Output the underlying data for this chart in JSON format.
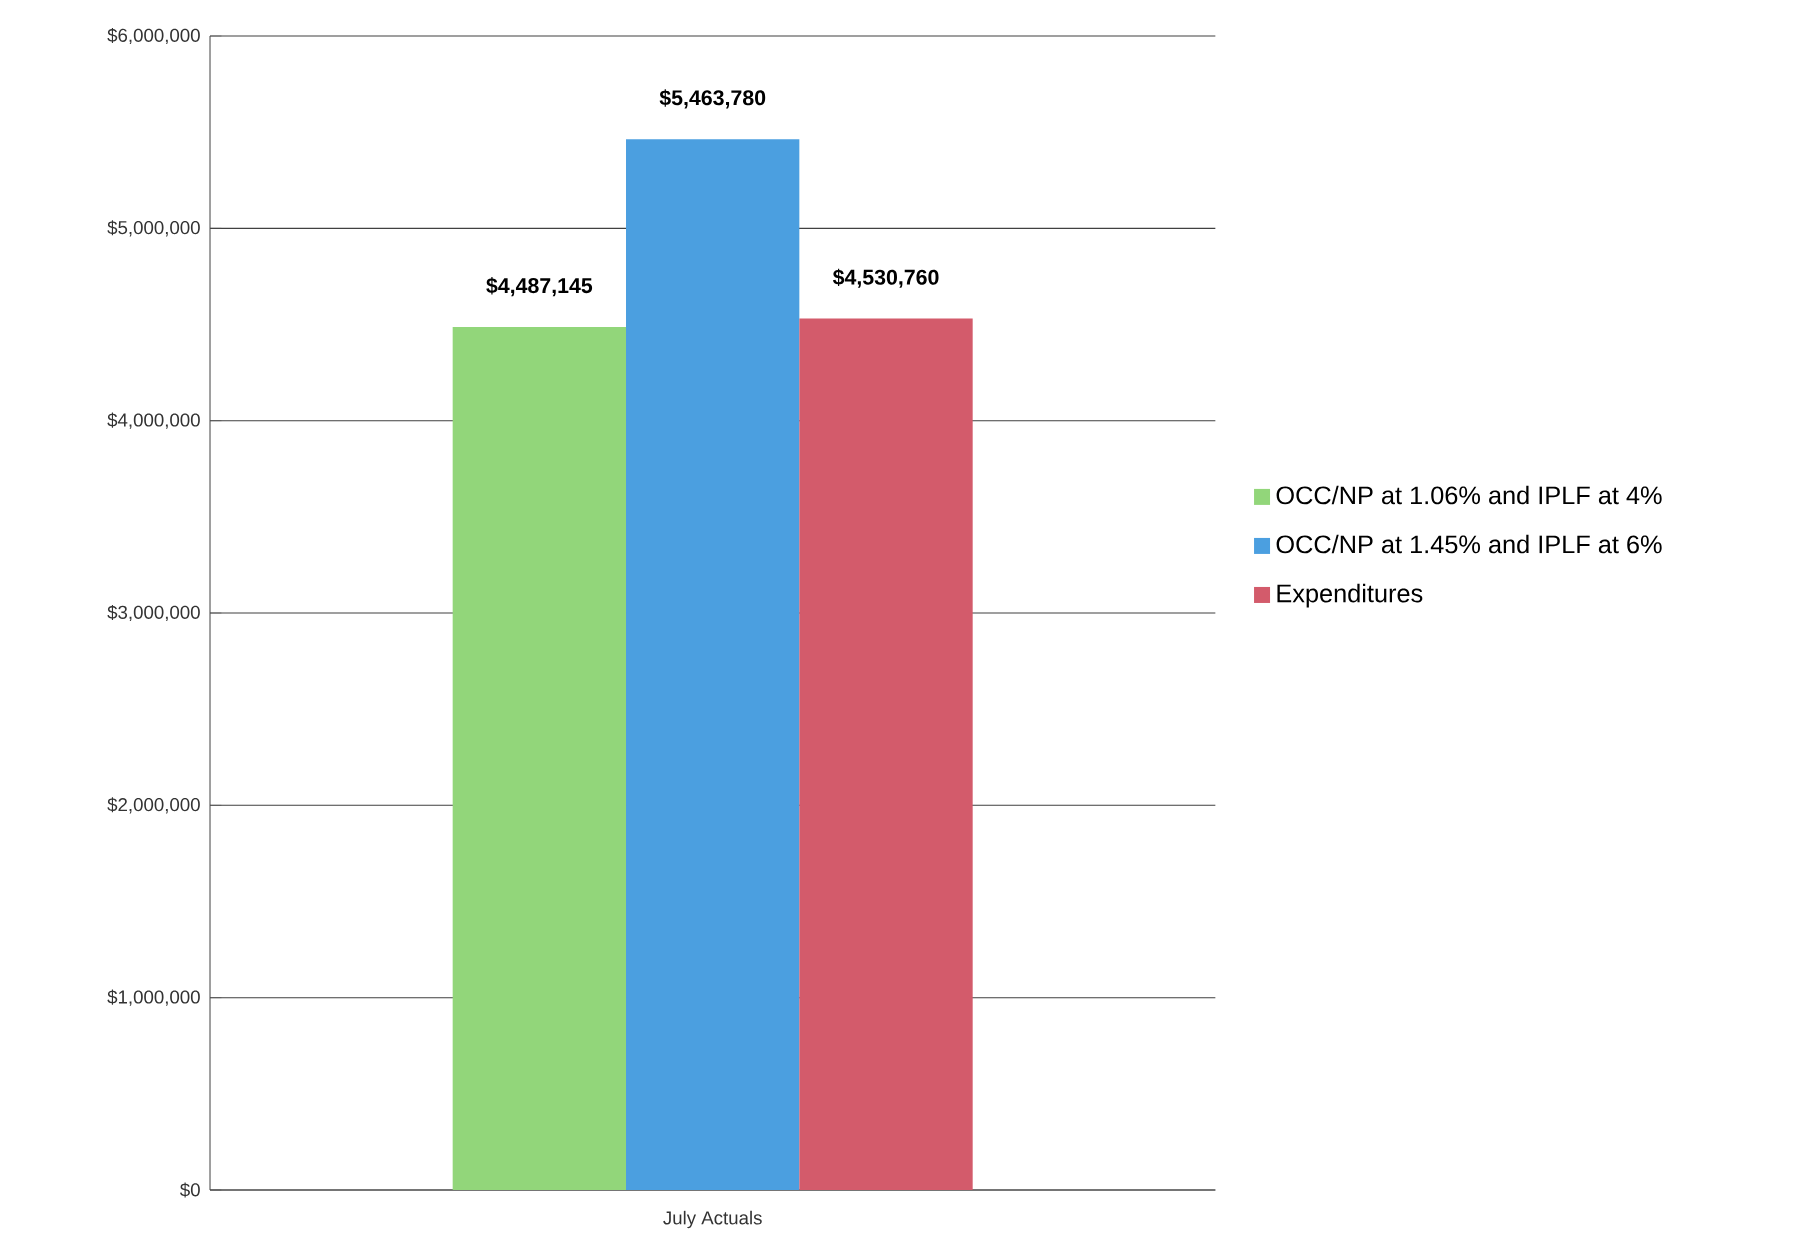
{
  "chart_data": {
    "type": "bar",
    "categories": [
      "July Actuals"
    ],
    "series": [
      {
        "name": "OCC/NP at 1.06% and IPLF at 4%",
        "color": "#92d67a",
        "values": [
          4487145
        ],
        "value_labels": [
          "$4,487,145"
        ]
      },
      {
        "name": "OCC/NP at 1.45% and IPLF at 6%",
        "color": "#4b9fe0",
        "values": [
          5463780
        ],
        "value_labels": [
          "$5,463,780"
        ]
      },
      {
        "name": "Expenditures",
        "color": "#d35b6b",
        "values": [
          4530760
        ],
        "value_labels": [
          "$4,530,760"
        ]
      }
    ],
    "ylim": [
      0,
      6000000
    ],
    "yticks": [
      {
        "value": 0,
        "label": "$0"
      },
      {
        "value": 1000000,
        "label": "$1,000,000"
      },
      {
        "value": 2000000,
        "label": "$2,000,000"
      },
      {
        "value": 3000000,
        "label": "$3,000,000"
      },
      {
        "value": 4000000,
        "label": "$4,000,000"
      },
      {
        "value": 5000000,
        "label": "$5,000,000"
      },
      {
        "value": 6000000,
        "label": "$6,000,000"
      }
    ],
    "grid": "y",
    "legend": "right"
  }
}
